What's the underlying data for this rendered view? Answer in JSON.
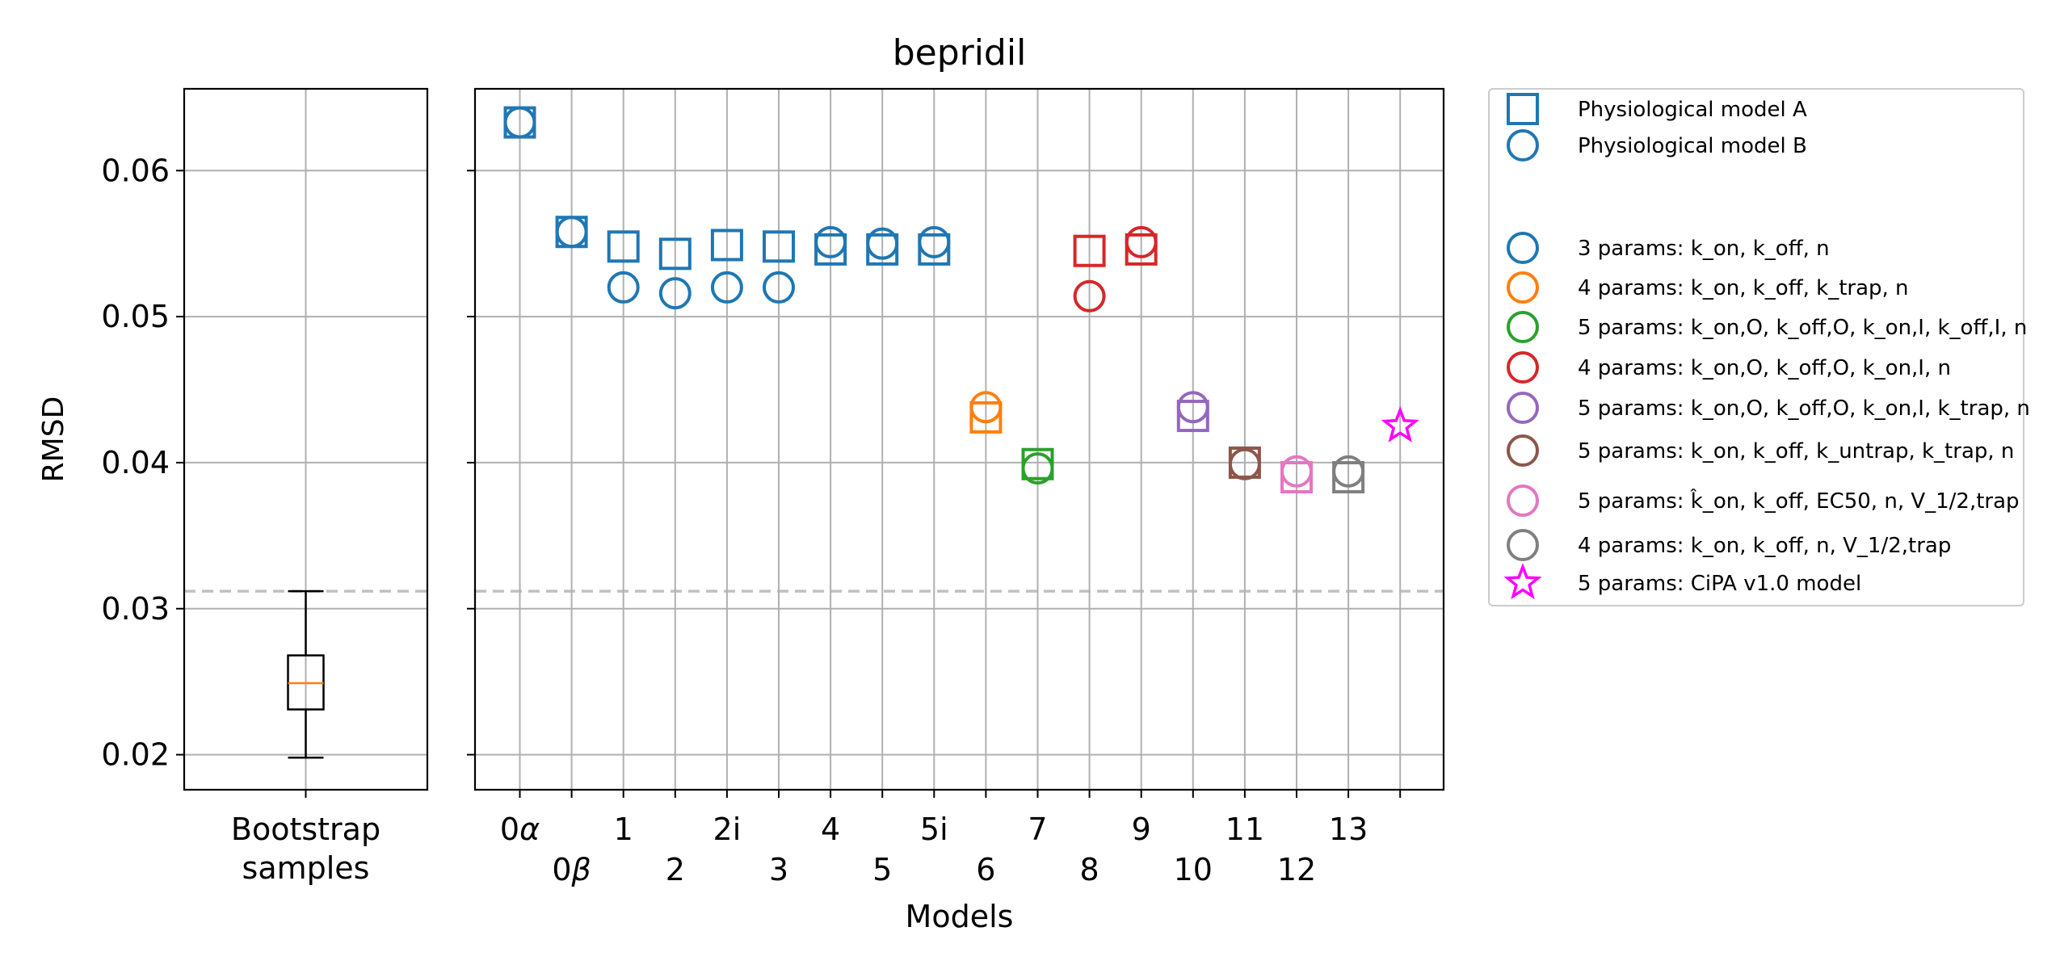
{
  "colors": {
    "blue": "#1f77b4",
    "orange": "#ff7f0e",
    "green": "#2ca02c",
    "red": "#d62728",
    "purple": "#9467bd",
    "brown": "#8c564b",
    "pink": "#e377c2",
    "gray": "#7f7f7f",
    "magenta": "#ff00ff",
    "grid": "#b0b0b0",
    "dashed": "#c0c0c0",
    "median": "#ff7f0e"
  },
  "chart_data": [
    {
      "type": "box",
      "category": "Bootstrap samples",
      "category_lines": [
        "Bootstrap",
        "samples"
      ],
      "ylabel": "RMSD",
      "ylim": [
        0.0176,
        0.0656
      ],
      "yticks": [
        0.02,
        0.03,
        0.04,
        0.05,
        0.06
      ],
      "ytick_labels": [
        "0.02",
        "0.03",
        "0.04",
        "0.05",
        "0.06"
      ],
      "box": {
        "whisker_low": 0.0198,
        "q1": 0.0231,
        "median": 0.0249,
        "q3": 0.0268,
        "whisker_high": 0.0312
      },
      "reference_line": 0.0312,
      "grid": true
    },
    {
      "type": "scatter",
      "title": "bepridil",
      "xlabel": "Models",
      "ylim": [
        0.0176,
        0.0656
      ],
      "grid": true,
      "reference_line": 0.0312,
      "models": [
        "0α",
        "0β",
        "1",
        "2",
        "2i",
        "3",
        "4",
        "5",
        "5i",
        "6",
        "7",
        "8",
        "9",
        "10",
        "11",
        "12",
        "13",
        ""
      ],
      "tick_labels_top": [
        "0α",
        "1",
        "2i",
        "4",
        "5i",
        "7",
        "9",
        "11",
        "13"
      ],
      "tick_labels_bottom": [
        "0β",
        "2",
        "3",
        "5",
        "6",
        "8",
        "10",
        "12"
      ],
      "series": [
        {
          "name": "Physiological model A",
          "marker": "square",
          "points": [
            {
              "x": "0α",
              "y": 0.0633,
              "color": "blue"
            },
            {
              "x": "0β",
              "y": 0.0558,
              "color": "blue"
            },
            {
              "x": "1",
              "y": 0.0548,
              "color": "blue"
            },
            {
              "x": "2",
              "y": 0.0543,
              "color": "blue"
            },
            {
              "x": "2i",
              "y": 0.0549,
              "color": "blue"
            },
            {
              "x": "3",
              "y": 0.0548,
              "color": "blue"
            },
            {
              "x": "4",
              "y": 0.0546,
              "color": "blue"
            },
            {
              "x": "5",
              "y": 0.0546,
              "color": "blue"
            },
            {
              "x": "5i",
              "y": 0.0546,
              "color": "blue"
            },
            {
              "x": "6",
              "y": 0.0431,
              "color": "orange"
            },
            {
              "x": "7",
              "y": 0.0399,
              "color": "green"
            },
            {
              "x": "8",
              "y": 0.0545,
              "color": "red"
            },
            {
              "x": "9",
              "y": 0.0546,
              "color": "red"
            },
            {
              "x": "10",
              "y": 0.0432,
              "color": "purple"
            },
            {
              "x": "11",
              "y": 0.04,
              "color": "brown"
            },
            {
              "x": "12",
              "y": 0.039,
              "color": "pink"
            },
            {
              "x": "13",
              "y": 0.039,
              "color": "gray"
            }
          ]
        },
        {
          "name": "Physiological model B",
          "marker": "circle",
          "points": [
            {
              "x": "0α",
              "y": 0.0633,
              "color": "blue"
            },
            {
              "x": "0β",
              "y": 0.0558,
              "color": "blue"
            },
            {
              "x": "1",
              "y": 0.052,
              "color": "blue"
            },
            {
              "x": "2",
              "y": 0.0516,
              "color": "blue"
            },
            {
              "x": "2i",
              "y": 0.052,
              "color": "blue"
            },
            {
              "x": "3",
              "y": 0.052,
              "color": "blue"
            },
            {
              "x": "4",
              "y": 0.0551,
              "color": "blue"
            },
            {
              "x": "5",
              "y": 0.055,
              "color": "blue"
            },
            {
              "x": "5i",
              "y": 0.0551,
              "color": "blue"
            },
            {
              "x": "6",
              "y": 0.0438,
              "color": "orange"
            },
            {
              "x": "7",
              "y": 0.0396,
              "color": "green"
            },
            {
              "x": "8",
              "y": 0.0514,
              "color": "red"
            },
            {
              "x": "9",
              "y": 0.0551,
              "color": "red"
            },
            {
              "x": "10",
              "y": 0.0438,
              "color": "purple"
            },
            {
              "x": "11",
              "y": 0.0399,
              "color": "brown"
            },
            {
              "x": "12",
              "y": 0.0394,
              "color": "pink"
            },
            {
              "x": "13",
              "y": 0.0394,
              "color": "gray"
            }
          ]
        },
        {
          "name": "5 params: CiPA v1.0 model",
          "marker": "star",
          "points": [
            {
              "x": "",
              "y": 0.0425,
              "color": "magenta"
            }
          ]
        }
      ],
      "legend": {
        "placement": "outside-right",
        "entries": [
          {
            "marker": "square",
            "color": "blue",
            "text": "Physiological model A"
          },
          {
            "marker": "circle",
            "color": "blue",
            "text": "Physiological model B"
          },
          {
            "marker": "none",
            "color": "",
            "text": ""
          },
          {
            "marker": "circle",
            "color": "blue",
            "text": "3 params: k_on, k_off, n"
          },
          {
            "marker": "circle",
            "color": "orange",
            "text": "4 params: k_on, k_off, k_trap, n"
          },
          {
            "marker": "circle",
            "color": "green",
            "text": "5 params: k_on,O, k_off,O, k_on,I, k_off,I, n"
          },
          {
            "marker": "circle",
            "color": "red",
            "text": "4 params: k_on,O, k_off,O, k_on,I, n"
          },
          {
            "marker": "circle",
            "color": "purple",
            "text": "5 params: k_on,O, k_off,O, k_on,I, k_trap, n"
          },
          {
            "marker": "circle",
            "color": "brown",
            "text": "5 params: k_on, k_off, k_untrap, k_trap, n"
          },
          {
            "marker": "circle",
            "color": "pink",
            "text": "5 params: k̂_on, k_off, EC50, n, V_1/2,trap"
          },
          {
            "marker": "circle",
            "color": "gray",
            "text": "4 params: k_on, k_off, n, V_1/2,trap"
          },
          {
            "marker": "star",
            "color": "magenta",
            "text": "5 params: CiPA v1.0 model"
          }
        ]
      }
    }
  ]
}
